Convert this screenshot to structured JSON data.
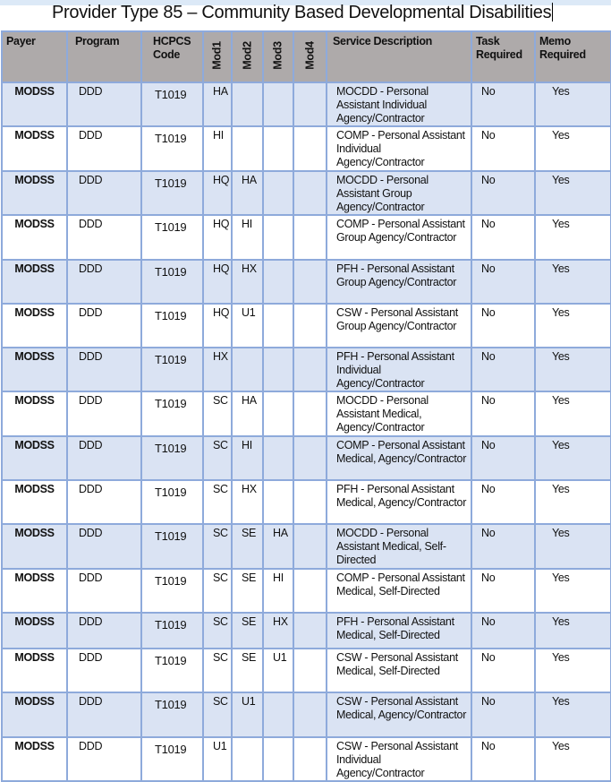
{
  "title": "Provider Type 85 – Community Based Developmental Disabilities",
  "headers": {
    "payer": "Payer",
    "program": "Program",
    "hcpcs": "HCPCS Code",
    "mod1": "Mod1",
    "mod2": "Mod2",
    "mod3": "Mod3",
    "mod4": "Mod4",
    "description": "Service Description",
    "task": "Task Required",
    "memo": "Memo Required"
  },
  "rows": [
    {
      "payer": "MODSS",
      "program": "DDD",
      "code": "T1019",
      "mod1": "HA",
      "mod2": "",
      "mod3": "",
      "mod4": "",
      "description": "MOCDD - Personal Assistant Individual Agency/Contractor",
      "task": "No",
      "memo": "Yes"
    },
    {
      "payer": "MODSS",
      "program": "DDD",
      "code": "T1019",
      "mod1": "HI",
      "mod2": "",
      "mod3": "",
      "mod4": "",
      "description": "COMP - Personal Assistant Individual Agency/Contractor",
      "task": "No",
      "memo": "Yes"
    },
    {
      "payer": "MODSS",
      "program": "DDD",
      "code": "T1019",
      "mod1": "HQ",
      "mod2": "HA",
      "mod3": "",
      "mod4": "",
      "description": "MOCDD - Personal Assistant Group Agency/Contractor",
      "task": "No",
      "memo": "Yes"
    },
    {
      "payer": "MODSS",
      "program": "DDD",
      "code": "T1019",
      "mod1": "HQ",
      "mod2": "HI",
      "mod3": "",
      "mod4": "",
      "description": "COMP - Personal Assistant Group Agency/Contractor",
      "task": "No",
      "memo": "Yes"
    },
    {
      "payer": "MODSS",
      "program": "DDD",
      "code": "T1019",
      "mod1": "HQ",
      "mod2": "HX",
      "mod3": "",
      "mod4": "",
      "description": "PFH - Personal Assistant Group Agency/Contractor",
      "task": "No",
      "memo": "Yes"
    },
    {
      "payer": "MODSS",
      "program": "DDD",
      "code": "T1019",
      "mod1": "HQ",
      "mod2": "U1",
      "mod3": "",
      "mod4": "",
      "description": "CSW - Personal Assistant Group Agency/Contractor",
      "task": "No",
      "memo": "Yes"
    },
    {
      "payer": "MODSS",
      "program": "DDD",
      "code": "T1019",
      "mod1": "HX",
      "mod2": "",
      "mod3": "",
      "mod4": "",
      "description": "PFH - Personal Assistant Individual Agency/Contractor",
      "task": "No",
      "memo": "Yes"
    },
    {
      "payer": "MODSS",
      "program": "DDD",
      "code": "T1019",
      "mod1": "SC",
      "mod2": "HA",
      "mod3": "",
      "mod4": "",
      "description": "MOCDD - Personal Assistant Medical, Agency/Contractor",
      "task": "No",
      "memo": "Yes"
    },
    {
      "payer": "MODSS",
      "program": "DDD",
      "code": "T1019",
      "mod1": "SC",
      "mod2": "HI",
      "mod3": "",
      "mod4": "",
      "description": "COMP - Personal Assistant Medical, Agency/Contractor",
      "task": "No",
      "memo": "Yes"
    },
    {
      "payer": "MODSS",
      "program": "DDD",
      "code": "T1019",
      "mod1": "SC",
      "mod2": "HX",
      "mod3": "",
      "mod4": "",
      "description": "PFH - Personal Assistant Medical, Agency/Contractor",
      "task": "No",
      "memo": "Yes"
    },
    {
      "payer": "MODSS",
      "program": "DDD",
      "code": "T1019",
      "mod1": "SC",
      "mod2": "SE",
      "mod3": "HA",
      "mod4": "",
      "description": "MOCDD - Personal Assistant Medical, Self-Directed",
      "task": "No",
      "memo": "Yes"
    },
    {
      "payer": "MODSS",
      "program": "DDD",
      "code": "T1019",
      "mod1": "SC",
      "mod2": "SE",
      "mod3": "HI",
      "mod4": "",
      "description": "COMP - Personal Assistant Medical, Self-Directed",
      "task": "No",
      "memo": "Yes"
    },
    {
      "payer": "MODSS",
      "program": "DDD",
      "code": "T1019",
      "mod1": "SC",
      "mod2": "SE",
      "mod3": "HX",
      "mod4": "",
      "description": "PFH - Personal Assistant Medical, Self-Directed",
      "task": "No",
      "memo": "Yes"
    },
    {
      "payer": "MODSS",
      "program": "DDD",
      "code": "T1019",
      "mod1": "SC",
      "mod2": "SE",
      "mod3": "U1",
      "mod4": "",
      "description": "CSW - Personal Assistant Medical, Self-Directed",
      "task": "No",
      "memo": "Yes"
    },
    {
      "payer": "MODSS",
      "program": "DDD",
      "code": "T1019",
      "mod1": "SC",
      "mod2": "U1",
      "mod3": "",
      "mod4": "",
      "description": "CSW - Personal Assistant Medical, Agency/Contractor",
      "task": "No",
      "memo": "Yes"
    },
    {
      "payer": "MODSS",
      "program": "DDD",
      "code": "T1019",
      "mod1": "U1",
      "mod2": "",
      "mod3": "",
      "mod4": "",
      "description": "CSW - Personal Assistant Individual Agency/Contractor",
      "task": "No",
      "memo": "Yes"
    }
  ]
}
